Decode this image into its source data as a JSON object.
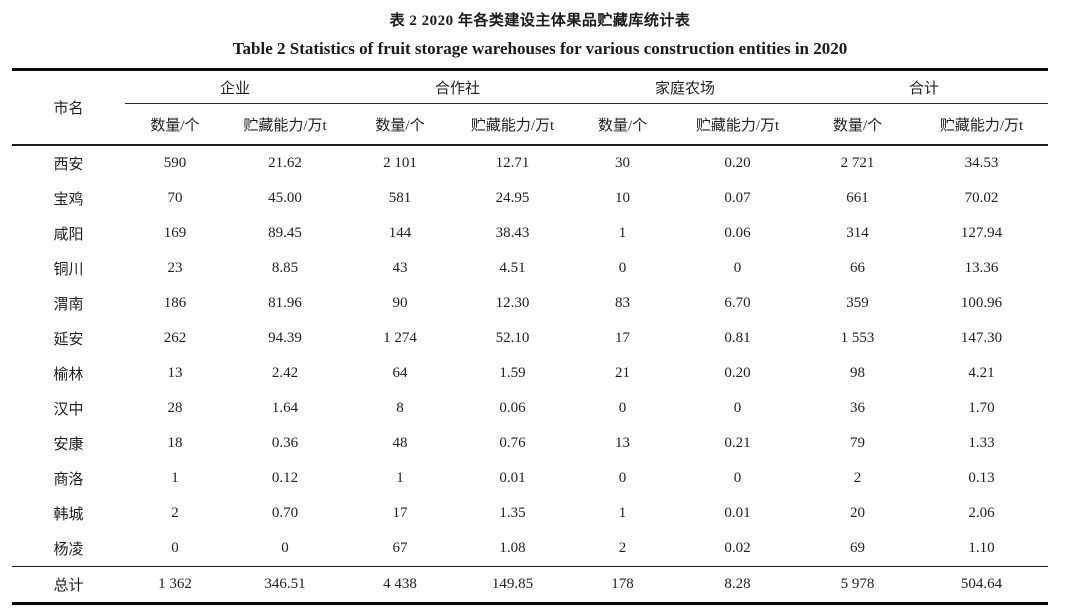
{
  "titles": {
    "zh": "表 2 2020 年各类建设主体果品贮藏库统计表",
    "en": "Table 2 Statistics of fruit storage warehouses for various construction entities in 2020"
  },
  "colors": {
    "text": "#1f1f1f",
    "rule": "#0a0a0a"
  },
  "chart_data": {
    "type": "table",
    "title_zh": "表 2 2020 年各类建设主体果品贮藏库统计表",
    "title_en": "Table 2 Statistics of fruit storage warehouses for various construction entities in 2020",
    "row_header": "市名",
    "column_groups": [
      "企业",
      "合作社",
      "家庭农场",
      "合计"
    ],
    "subcolumns": [
      "数量/个",
      "贮藏能力/万t"
    ],
    "rows": [
      {
        "city": "西安",
        "values": [
          "590",
          "21.62",
          "2 101",
          "12.71",
          "30",
          "0.20",
          "2 721",
          "34.53"
        ]
      },
      {
        "city": "宝鸡",
        "values": [
          "70",
          "45.00",
          "581",
          "24.95",
          "10",
          "0.07",
          "661",
          "70.02"
        ]
      },
      {
        "city": "咸阳",
        "values": [
          "169",
          "89.45",
          "144",
          "38.43",
          "1",
          "0.06",
          "314",
          "127.94"
        ]
      },
      {
        "city": "铜川",
        "values": [
          "23",
          "8.85",
          "43",
          "4.51",
          "0",
          "0",
          "66",
          "13.36"
        ]
      },
      {
        "city": "渭南",
        "values": [
          "186",
          "81.96",
          "90",
          "12.30",
          "83",
          "6.70",
          "359",
          "100.96"
        ]
      },
      {
        "city": "延安",
        "values": [
          "262",
          "94.39",
          "1 274",
          "52.10",
          "17",
          "0.81",
          "1 553",
          "147.30"
        ]
      },
      {
        "city": "榆林",
        "values": [
          "13",
          "2.42",
          "64",
          "1.59",
          "21",
          "0.20",
          "98",
          "4.21"
        ]
      },
      {
        "city": "汉中",
        "values": [
          "28",
          "1.64",
          "8",
          "0.06",
          "0",
          "0",
          "36",
          "1.70"
        ]
      },
      {
        "city": "安康",
        "values": [
          "18",
          "0.36",
          "48",
          "0.76",
          "13",
          "0.21",
          "79",
          "1.33"
        ]
      },
      {
        "city": "商洛",
        "values": [
          "1",
          "0.12",
          "1",
          "0.01",
          "0",
          "0",
          "2",
          "0.13"
        ]
      },
      {
        "city": "韩城",
        "values": [
          "2",
          "0.70",
          "17",
          "1.35",
          "1",
          "0.01",
          "20",
          "2.06"
        ]
      },
      {
        "city": "杨凌",
        "values": [
          "0",
          "0",
          "67",
          "1.08",
          "2",
          "0.02",
          "69",
          "1.10"
        ]
      }
    ],
    "total_row": {
      "city": "总计",
      "values": [
        "1 362",
        "346.51",
        "4 438",
        "149.85",
        "178",
        "8.28",
        "5 978",
        "504.64"
      ]
    }
  }
}
